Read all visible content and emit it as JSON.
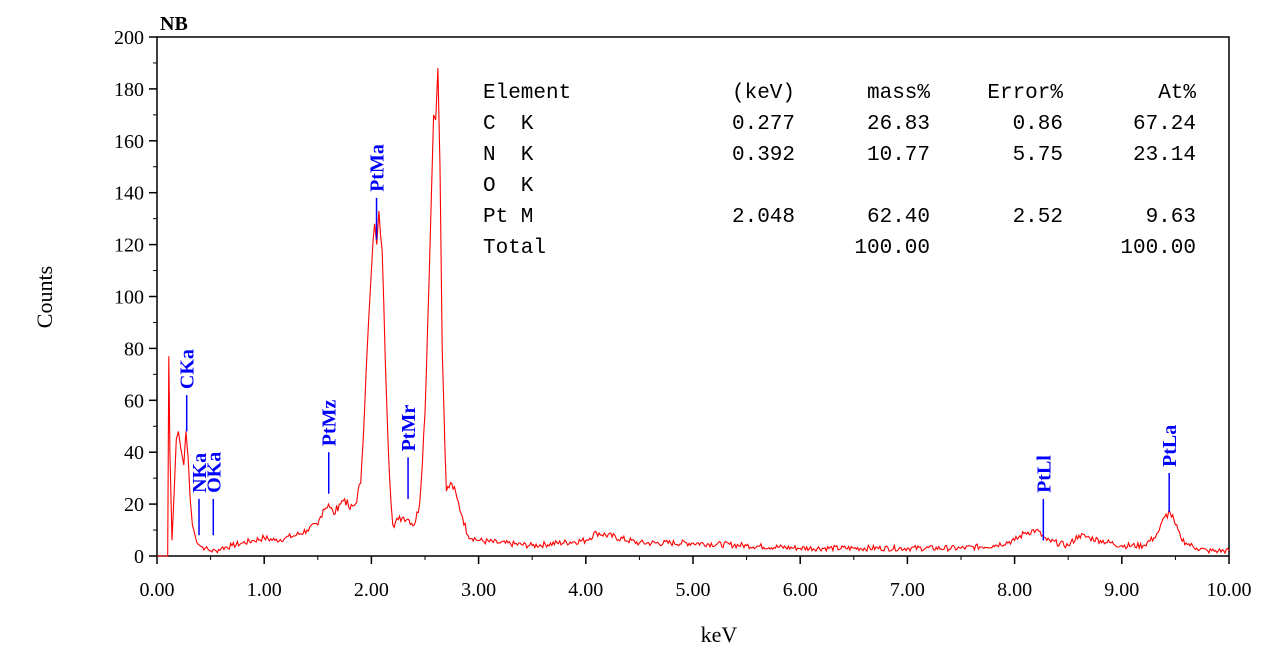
{
  "colors": {
    "spectrum": "#ff0000",
    "peak_marker": "#0000ff",
    "axis": "#000000"
  },
  "chart_data": {
    "type": "line",
    "title": "NB",
    "xlabel": "keV",
    "ylabel": "Counts",
    "xlim": [
      0,
      10
    ],
    "ylim": [
      0,
      200
    ],
    "x_ticks": [
      "0.00",
      "1.00",
      "2.00",
      "3.00",
      "4.00",
      "5.00",
      "6.00",
      "7.00",
      "8.00",
      "9.00",
      "10.00"
    ],
    "y_ticks": [
      "0",
      "20",
      "40",
      "60",
      "80",
      "100",
      "120",
      "140",
      "160",
      "180",
      "200"
    ],
    "series": [
      {
        "x": [
          0.0,
          0.1,
          0.11,
          0.12,
          0.14,
          0.16,
          0.18,
          0.2,
          0.22,
          0.25,
          0.27,
          0.29,
          0.31,
          0.33,
          0.36,
          0.4,
          0.45,
          0.5,
          0.55,
          0.6,
          0.7,
          0.8,
          0.9,
          1.0,
          1.1,
          1.2,
          1.3,
          1.4,
          1.5,
          1.55,
          1.6,
          1.65,
          1.7,
          1.75,
          1.8,
          1.85,
          1.9,
          1.95,
          2.0,
          2.03,
          2.05,
          2.07,
          2.1,
          2.13,
          2.17,
          2.2,
          2.25,
          2.3,
          2.35,
          2.4,
          2.45,
          2.5,
          2.55,
          2.58,
          2.6,
          2.62,
          2.64,
          2.66,
          2.7,
          2.75,
          2.8,
          2.85,
          2.9,
          3.0,
          3.2,
          3.5,
          4.0,
          4.1,
          4.5,
          5.0,
          5.5,
          6.0,
          6.5,
          7.0,
          7.5,
          7.8,
          8.0,
          8.1,
          8.2,
          8.3,
          8.5,
          8.6,
          8.7,
          8.8,
          9.0,
          9.2,
          9.3,
          9.35,
          9.4,
          9.45,
          9.5,
          9.55,
          9.6,
          9.7,
          9.8,
          9.9,
          10.0
        ],
        "y": [
          0,
          0,
          77,
          40,
          6,
          25,
          45,
          48,
          42,
          35,
          48,
          38,
          22,
          12,
          7,
          4,
          3,
          2,
          2,
          3,
          4,
          5,
          6,
          7,
          6,
          7,
          8,
          10,
          12,
          18,
          20,
          16,
          20,
          22,
          18,
          20,
          28,
          70,
          110,
          128,
          120,
          133,
          118,
          75,
          30,
          12,
          14,
          15,
          14,
          12,
          20,
          55,
          125,
          170,
          168,
          188,
          150,
          80,
          25,
          28,
          22,
          15,
          8,
          6,
          5,
          4,
          6,
          9,
          5,
          5,
          4,
          3,
          3,
          3,
          3,
          4,
          6,
          9,
          10,
          6,
          4,
          8,
          7,
          6,
          4,
          4,
          7,
          10,
          15,
          17,
          12,
          7,
          5,
          3,
          2,
          2,
          2
        ]
      }
    ],
    "peak_labels": [
      {
        "label": "CKa",
        "x": 0.277,
        "line_bottom": 48,
        "line_top": 62
      },
      {
        "label": "NKa",
        "x": 0.392,
        "line_bottom": 8,
        "line_top": 22
      },
      {
        "label": "OKa",
        "x": 0.525,
        "line_bottom": 8,
        "line_top": 22
      },
      {
        "label": "PtMz",
        "x": 1.602,
        "line_bottom": 24,
        "line_top": 40
      },
      {
        "label": "PtMa",
        "x": 2.048,
        "line_bottom": 122,
        "line_top": 138
      },
      {
        "label": "PtMr",
        "x": 2.342,
        "line_bottom": 22,
        "line_top": 38
      },
      {
        "label": "PtLl",
        "x": 8.268,
        "line_bottom": 6,
        "line_top": 22
      },
      {
        "label": "PtLa",
        "x": 9.442,
        "line_bottom": 17,
        "line_top": 32
      }
    ],
    "table": {
      "headers": [
        "Element",
        "(keV)",
        "mass%",
        "Error%",
        "At%"
      ],
      "rows": [
        {
          "element": "C  K",
          "kev": "0.277",
          "mass": "26.83",
          "error": "0.86",
          "at": "67.24"
        },
        {
          "element": "N  K",
          "kev": "0.392",
          "mass": "10.77",
          "error": "5.75",
          "at": "23.14"
        },
        {
          "element": "O  K",
          "kev": "",
          "mass": "",
          "error": "",
          "at": ""
        },
        {
          "element": "Pt M",
          "kev": "2.048",
          "mass": "62.40",
          "error": "2.52",
          "at": "9.63"
        },
        {
          "element": "Total",
          "kev": "",
          "mass": "100.00",
          "error": "",
          "at": "100.00"
        }
      ]
    }
  }
}
